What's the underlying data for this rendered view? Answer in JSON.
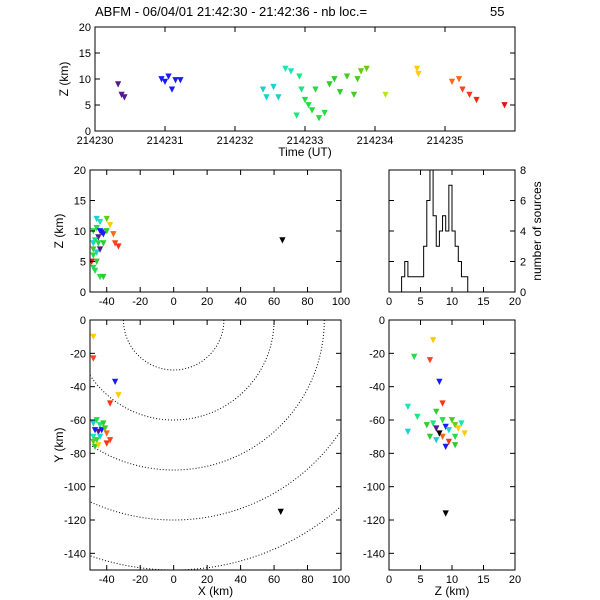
{
  "figure": {
    "title": "ABFM - 06/04/01 21:42:30 - 21:42:36 - nb loc.=",
    "count": "55"
  },
  "chart_data": [
    {
      "id": "time-height",
      "type": "scatter",
      "xlabel": "Time (UT)",
      "ylabel": "Z (km)",
      "xlim": [
        214230,
        214236
      ],
      "ylim": [
        0,
        20
      ],
      "xticks": [
        "214230",
        "214231",
        "214232",
        "214233",
        "214234",
        "214235"
      ],
      "yticks": [
        "0",
        "5",
        "10",
        "15",
        "20"
      ],
      "points": [
        {
          "x": 214230.33,
          "y": 9.0,
          "c": "#551a8b"
        },
        {
          "x": 214230.38,
          "y": 7.0,
          "c": "#551a8b"
        },
        {
          "x": 214230.42,
          "y": 6.5,
          "c": "#551a8b"
        },
        {
          "x": 214230.95,
          "y": 10.0,
          "c": "#1a1aff"
        },
        {
          "x": 214231.0,
          "y": 9.5,
          "c": "#1a1aff"
        },
        {
          "x": 214231.05,
          "y": 10.5,
          "c": "#1a1aff"
        },
        {
          "x": 214231.1,
          "y": 8.0,
          "c": "#1a1aff"
        },
        {
          "x": 214231.15,
          "y": 9.8,
          "c": "#1a1aff"
        },
        {
          "x": 214231.22,
          "y": 9.8,
          "c": "#1a1aff"
        },
        {
          "x": 214232.4,
          "y": 8.0,
          "c": "#19d2d2"
        },
        {
          "x": 214232.45,
          "y": 6.5,
          "c": "#19d2d2"
        },
        {
          "x": 214232.55,
          "y": 8.5,
          "c": "#19d2d2"
        },
        {
          "x": 214232.62,
          "y": 6.5,
          "c": "#19d2d2"
        },
        {
          "x": 214232.72,
          "y": 12.0,
          "c": "#19e6b4"
        },
        {
          "x": 214232.8,
          "y": 11.5,
          "c": "#19e6b4"
        },
        {
          "x": 214232.88,
          "y": 3.0,
          "c": "#19e680"
        },
        {
          "x": 214232.92,
          "y": 10.5,
          "c": "#19e680"
        },
        {
          "x": 214232.95,
          "y": 8.0,
          "c": "#19e680"
        },
        {
          "x": 214233.0,
          "y": 6.0,
          "c": "#22dd44"
        },
        {
          "x": 214233.05,
          "y": 5.0,
          "c": "#22dd44"
        },
        {
          "x": 214233.1,
          "y": 4.0,
          "c": "#22dd44"
        },
        {
          "x": 214233.15,
          "y": 8.0,
          "c": "#22dd44"
        },
        {
          "x": 214233.2,
          "y": 2.5,
          "c": "#22dd44"
        },
        {
          "x": 214233.28,
          "y": 3.5,
          "c": "#22dd44"
        },
        {
          "x": 214233.35,
          "y": 9.0,
          "c": "#2ecc2e"
        },
        {
          "x": 214233.42,
          "y": 10.0,
          "c": "#2ecc2e"
        },
        {
          "x": 214233.5,
          "y": 7.5,
          "c": "#2ecc2e"
        },
        {
          "x": 214233.6,
          "y": 10.5,
          "c": "#44cc22"
        },
        {
          "x": 214233.7,
          "y": 7.0,
          "c": "#44cc22"
        },
        {
          "x": 214233.75,
          "y": 10.0,
          "c": "#44cc22"
        },
        {
          "x": 214233.8,
          "y": 11.5,
          "c": "#66cc11"
        },
        {
          "x": 214233.88,
          "y": 12.0,
          "c": "#66cc11"
        },
        {
          "x": 214234.15,
          "y": 7.0,
          "c": "#b4e619"
        },
        {
          "x": 214234.6,
          "y": 12.0,
          "c": "#ffcc00"
        },
        {
          "x": 214234.62,
          "y": 11.0,
          "c": "#ffcc00"
        },
        {
          "x": 214235.1,
          "y": 9.5,
          "c": "#ff6619"
        },
        {
          "x": 214235.2,
          "y": 10.0,
          "c": "#ff6619"
        },
        {
          "x": 214235.25,
          "y": 8.0,
          "c": "#ff4419"
        },
        {
          "x": 214235.35,
          "y": 7.0,
          "c": "#ff3319"
        },
        {
          "x": 214235.45,
          "y": 6.0,
          "c": "#ff2211"
        },
        {
          "x": 214235.85,
          "y": 5.0,
          "c": "#e81010"
        }
      ]
    },
    {
      "id": "x-height",
      "type": "scatter",
      "xlabel": "",
      "ylabel": "Z (km)",
      "xlim": [
        -50,
        100
      ],
      "ylim": [
        0,
        20
      ],
      "xticks": [
        "-40",
        "-20",
        "0",
        "20",
        "40",
        "60",
        "80",
        "100"
      ],
      "yticks": [
        "0",
        "5",
        "10",
        "15",
        "20"
      ],
      "points": [
        {
          "x": -46,
          "y": 12.0,
          "c": "#19d2d2"
        },
        {
          "x": -44,
          "y": 11.5,
          "c": "#19e6b4"
        },
        {
          "x": -40,
          "y": 12.0,
          "c": "#66cc11"
        },
        {
          "x": -38,
          "y": 11.0,
          "c": "#ffcc00"
        },
        {
          "x": -48,
          "y": 10.0,
          "c": "#22dd44"
        },
        {
          "x": -46,
          "y": 10.5,
          "c": "#22dd44"
        },
        {
          "x": -44,
          "y": 10.0,
          "c": "#1a1aff"
        },
        {
          "x": -42,
          "y": 9.5,
          "c": "#1a1aff"
        },
        {
          "x": -45,
          "y": 9.0,
          "c": "#551a8b"
        },
        {
          "x": -43,
          "y": 9.8,
          "c": "#1a1aff"
        },
        {
          "x": -40,
          "y": 10.0,
          "c": "#2ecc2e"
        },
        {
          "x": -36,
          "y": 9.5,
          "c": "#ff6619"
        },
        {
          "x": -48,
          "y": 8.0,
          "c": "#19d2d2"
        },
        {
          "x": -47,
          "y": 8.5,
          "c": "#19e680"
        },
        {
          "x": -45,
          "y": 8.0,
          "c": "#22dd44"
        },
        {
          "x": -42,
          "y": 8.0,
          "c": "#2ecc2e"
        },
        {
          "x": -35,
          "y": 8.0,
          "c": "#ff4419"
        },
        {
          "x": -33,
          "y": 7.5,
          "c": "#ff3319"
        },
        {
          "x": -48,
          "y": 7.0,
          "c": "#44cc22"
        },
        {
          "x": -46,
          "y": 6.5,
          "c": "#19d2d2"
        },
        {
          "x": -44,
          "y": 7.0,
          "c": "#551a8b"
        },
        {
          "x": -48,
          "y": 6.0,
          "c": "#22dd44"
        },
        {
          "x": -46,
          "y": 5.0,
          "c": "#2ecc2e"
        },
        {
          "x": -48,
          "y": 4.0,
          "c": "#22dd44"
        },
        {
          "x": -49,
          "y": 5.0,
          "c": "#e81010"
        },
        {
          "x": -44,
          "y": 2.5,
          "c": "#22dd44"
        },
        {
          "x": -42,
          "y": 2.5,
          "c": "#2ecc2e"
        },
        {
          "x": -47,
          "y": 3.5,
          "c": "#22dd44"
        },
        {
          "x": 65,
          "y": 8.5,
          "c": "#000000"
        }
      ]
    },
    {
      "id": "height-histogram",
      "type": "bar",
      "ylabel": "number of sources",
      "xlim": [
        0,
        20
      ],
      "ylim": [
        0,
        8
      ],
      "xticks": [
        "0",
        "5",
        "10",
        "15",
        "20"
      ],
      "yticks": [
        "0",
        "2",
        "4",
        "6",
        "8"
      ],
      "bin_width": 0.5,
      "bins": [
        {
          "x0": 0.0,
          "v": 0
        },
        {
          "x0": 0.5,
          "v": 0
        },
        {
          "x0": 1.0,
          "v": 0
        },
        {
          "x0": 1.5,
          "v": 0
        },
        {
          "x0": 2.0,
          "v": 1
        },
        {
          "x0": 2.5,
          "v": 2
        },
        {
          "x0": 3.0,
          "v": 1
        },
        {
          "x0": 3.5,
          "v": 1
        },
        {
          "x0": 4.0,
          "v": 1
        },
        {
          "x0": 4.5,
          "v": 1
        },
        {
          "x0": 5.0,
          "v": 1
        },
        {
          "x0": 5.5,
          "v": 3
        },
        {
          "x0": 6.0,
          "v": 6
        },
        {
          "x0": 6.5,
          "v": 8
        },
        {
          "x0": 7.0,
          "v": 5
        },
        {
          "x0": 7.5,
          "v": 3
        },
        {
          "x0": 8.0,
          "v": 4
        },
        {
          "x0": 8.5,
          "v": 5
        },
        {
          "x0": 9.0,
          "v": 4
        },
        {
          "x0": 9.5,
          "v": 7
        },
        {
          "x0": 10.0,
          "v": 4
        },
        {
          "x0": 10.5,
          "v": 3
        },
        {
          "x0": 11.0,
          "v": 2
        },
        {
          "x0": 11.5,
          "v": 1
        },
        {
          "x0": 12.0,
          "v": 1
        },
        {
          "x0": 12.5,
          "v": 0
        }
      ]
    },
    {
      "id": "plan-view",
      "type": "scatter",
      "xlabel": "X (km)",
      "ylabel": "Y (km)",
      "xlim": [
        -50,
        100
      ],
      "ylim": [
        -150,
        0
      ],
      "xticks": [
        "-40",
        "-20",
        "0",
        "20",
        "40",
        "60",
        "80",
        "100"
      ],
      "yticks": [
        "0",
        "-20",
        "-40",
        "-60",
        "-80",
        "-100",
        "-120",
        "-140"
      ],
      "range_rings": {
        "center": [
          0,
          0
        ],
        "radii_km": [
          30,
          60,
          90,
          120,
          150
        ]
      },
      "points": [
        {
          "x": -48,
          "y": -10,
          "c": "#ffcc00"
        },
        {
          "x": -48,
          "y": -23,
          "c": "#ff4419"
        },
        {
          "x": -35,
          "y": -37,
          "c": "#1a1aff"
        },
        {
          "x": -33,
          "y": -45,
          "c": "#ffcc00"
        },
        {
          "x": -38,
          "y": -50,
          "c": "#ff3319"
        },
        {
          "x": -48,
          "y": -62,
          "c": "#19d2d2"
        },
        {
          "x": -46,
          "y": -60,
          "c": "#22dd44"
        },
        {
          "x": -44,
          "y": -63,
          "c": "#19e680"
        },
        {
          "x": -42,
          "y": -62,
          "c": "#2ecc2e"
        },
        {
          "x": -47,
          "y": -66,
          "c": "#1a1aff"
        },
        {
          "x": -45,
          "y": -67,
          "c": "#551a8b"
        },
        {
          "x": -43,
          "y": -66,
          "c": "#1a1aff"
        },
        {
          "x": -41,
          "y": -65,
          "c": "#44cc22"
        },
        {
          "x": -48,
          "y": -70,
          "c": "#19e6b4"
        },
        {
          "x": -46,
          "y": -72,
          "c": "#22dd44"
        },
        {
          "x": -44,
          "y": -70,
          "c": "#19d2d2"
        },
        {
          "x": -40,
          "y": -68,
          "c": "#ff6619"
        },
        {
          "x": -38,
          "y": -72,
          "c": "#ff4419"
        },
        {
          "x": -40,
          "y": -74,
          "c": "#ff3319"
        },
        {
          "x": -47,
          "y": -76,
          "c": "#2ecc2e"
        },
        {
          "x": -45,
          "y": -75,
          "c": "#ffcc00"
        },
        {
          "x": -48,
          "y": -73,
          "c": "#66cc11"
        },
        {
          "x": 64,
          "y": -115,
          "c": "#000000"
        }
      ]
    },
    {
      "id": "height-y",
      "type": "scatter",
      "xlabel": "Z (km)",
      "ylabel": "",
      "xlim": [
        0,
        20
      ],
      "ylim": [
        -150,
        0
      ],
      "xticks": [
        "0",
        "5",
        "10",
        "15",
        "20"
      ],
      "yticks": [
        "0",
        "-20",
        "-40",
        "-60",
        "-80",
        "-100",
        "-120",
        "-140"
      ],
      "points": [
        {
          "x": 4.0,
          "y": -22,
          "c": "#22dd44"
        },
        {
          "x": 6.5,
          "y": -24,
          "c": "#ff4419"
        },
        {
          "x": 7.0,
          "y": -12,
          "c": "#ffcc00"
        },
        {
          "x": 8.0,
          "y": -37,
          "c": "#1a1aff"
        },
        {
          "x": 3.0,
          "y": -52,
          "c": "#19e6b4"
        },
        {
          "x": 4.5,
          "y": -58,
          "c": "#19e680"
        },
        {
          "x": 8.5,
          "y": -50,
          "c": "#ff3319"
        },
        {
          "x": 7.5,
          "y": -55,
          "c": "#2ecc2e"
        },
        {
          "x": 3.0,
          "y": -67,
          "c": "#19d2d2"
        },
        {
          "x": 6.0,
          "y": -63,
          "c": "#2ecc2e"
        },
        {
          "x": 7.0,
          "y": -62,
          "c": "#19e680"
        },
        {
          "x": 7.5,
          "y": -65,
          "c": "#551a8b"
        },
        {
          "x": 8.5,
          "y": -60,
          "c": "#22dd44"
        },
        {
          "x": 9.0,
          "y": -64,
          "c": "#1a1aff"
        },
        {
          "x": 9.5,
          "y": -66,
          "c": "#19d2d2"
        },
        {
          "x": 10.0,
          "y": -60,
          "c": "#44cc22"
        },
        {
          "x": 10.5,
          "y": -63,
          "c": "#66cc11"
        },
        {
          "x": 11.0,
          "y": -65,
          "c": "#ffcc00"
        },
        {
          "x": 11.5,
          "y": -62,
          "c": "#19e6b4"
        },
        {
          "x": 12.0,
          "y": -68,
          "c": "#ffcc00"
        },
        {
          "x": 6.5,
          "y": -70,
          "c": "#2ecc2e"
        },
        {
          "x": 7.5,
          "y": -72,
          "c": "#19d2d2"
        },
        {
          "x": 8.5,
          "y": -70,
          "c": "#ff6619"
        },
        {
          "x": 9.5,
          "y": -73,
          "c": "#ff3319"
        },
        {
          "x": 10.5,
          "y": -70,
          "c": "#22dd44"
        },
        {
          "x": 8.0,
          "y": -68,
          "c": "#000000"
        },
        {
          "x": 9.0,
          "y": -76,
          "c": "#1a1aff"
        },
        {
          "x": 10.5,
          "y": -75,
          "c": "#2ecc2e"
        },
        {
          "x": 9.0,
          "y": -116,
          "c": "#000000"
        }
      ]
    }
  ]
}
